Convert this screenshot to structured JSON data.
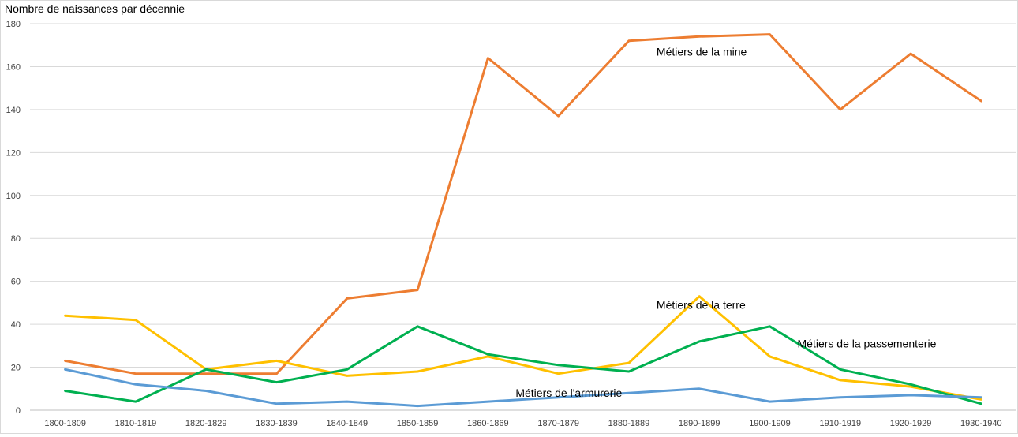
{
  "chart_data": {
    "type": "line",
    "title": "",
    "xlabel": "",
    "ylabel": "Nombre de naissances par décennie",
    "ylim": [
      0,
      180
    ],
    "ytick_step": 20,
    "grid": true,
    "legend": "none",
    "categories": [
      "1800-1809",
      "1810-1819",
      "1820-1829",
      "1830-1839",
      "1840-1849",
      "1850-1859",
      "1860-1869",
      "1870-1879",
      "1880-1889",
      "1890-1899",
      "1900-1909",
      "1910-1919",
      "1920-1929",
      "1930-1940"
    ],
    "series": [
      {
        "name": "Métiers de la mine",
        "color": "#ED7D31",
        "values": [
          23,
          17,
          17,
          17,
          52,
          56,
          164,
          137,
          172,
          174,
          175,
          140,
          166,
          144
        ]
      },
      {
        "name": "Métiers de la terre",
        "color": "#FFC000",
        "values": [
          44,
          42,
          19,
          23,
          16,
          18,
          25,
          17,
          22,
          53,
          25,
          14,
          11,
          5
        ]
      },
      {
        "name": "Métiers de la passementerie",
        "color": "#00B050",
        "values": [
          9,
          4,
          19,
          13,
          19,
          39,
          26,
          21,
          18,
          32,
          39,
          19,
          12,
          3
        ]
      },
      {
        "name": "Métiers de l'armurerie",
        "color": "#5B9BD5",
        "values": [
          19,
          12,
          9,
          3,
          4,
          2,
          4,
          6,
          8,
          10,
          4,
          6,
          7,
          6
        ]
      }
    ],
    "annotations": [
      {
        "text": "Métiers de la mine",
        "category_index": 8,
        "y": 167
      },
      {
        "text": "Métiers de la terre",
        "category_index": 8,
        "y": 49
      },
      {
        "text": "Métiers de la passementerie",
        "category_index": 10,
        "y": 31
      },
      {
        "text": "Métiers de l'armurerie",
        "category_index": 6,
        "y": 8
      }
    ]
  }
}
